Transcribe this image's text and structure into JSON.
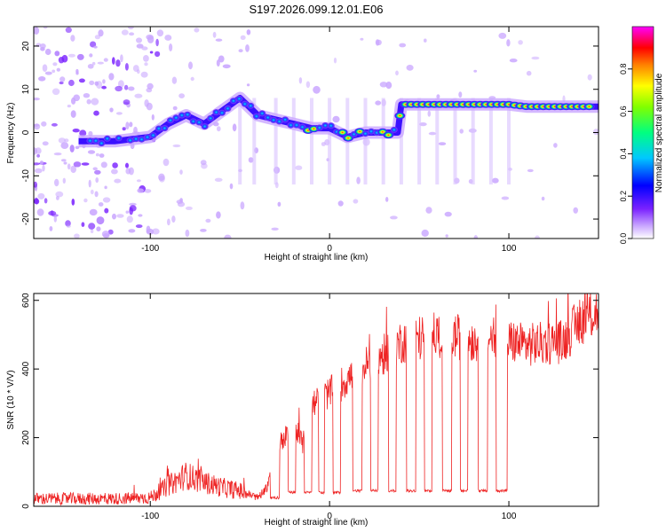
{
  "title": "S197.2026.099.12.01.E06",
  "colors": {
    "snr_line": "#ee2222",
    "background": "#ffffff",
    "axis": "#000000"
  },
  "chart_data": [
    {
      "type": "heatmap",
      "name": "spectrogram",
      "xlabel": "Height of straight line (km)",
      "ylabel": "Frequency (Hz)",
      "xlim": [
        -165,
        150
      ],
      "ylim": [
        -24.5,
        24.5
      ],
      "x_ticks": [
        -100,
        0,
        100
      ],
      "y_ticks": [
        -20,
        -10,
        0,
        10,
        20
      ],
      "colorbar": {
        "label": "Normalized spectral amplitude",
        "range": [
          0,
          1
        ],
        "ticks": [
          "0.0",
          "0.2",
          "0.4",
          "0.6",
          "0.8"
        ],
        "colormap": "rainbow (white-violet-blue-cyan-green-yellow-red-magenta)"
      },
      "ridge": {
        "description": "dominant frequency trace vs height",
        "x": [
          -140,
          -120,
          -100,
          -90,
          -80,
          -70,
          -60,
          -50,
          -40,
          -30,
          -20,
          -10,
          0,
          10,
          20,
          30,
          38,
          40,
          60,
          80,
          100,
          110,
          130,
          150
        ],
        "freq": [
          -2,
          -2,
          -1,
          2,
          4,
          2,
          5,
          8,
          4,
          3,
          2,
          1,
          1,
          -1,
          0,
          0,
          0,
          6.5,
          6.5,
          6.5,
          6.5,
          6,
          6,
          6
        ]
      }
    },
    {
      "type": "line",
      "name": "snr",
      "xlabel": "Height of straight line (km)",
      "ylabel": "SNR (10 * V/V)",
      "xlim": [
        -165,
        150
      ],
      "ylim": [
        0,
        620
      ],
      "x_ticks": [
        -100,
        0,
        100
      ],
      "y_ticks": [
        0,
        200,
        400,
        600
      ],
      "baseline": {
        "x": [
          -165,
          -120,
          -100,
          -90,
          -80,
          -70,
          -60,
          -50,
          -40,
          -35,
          -30,
          -25,
          -20,
          -15,
          -10,
          -5,
          0,
          10,
          20,
          30,
          40,
          50,
          60,
          70,
          80,
          90,
          100,
          110,
          120,
          130,
          140,
          150
        ],
        "y": [
          22,
          22,
          25,
          60,
          90,
          70,
          55,
          45,
          25,
          55,
          170,
          200,
          240,
          180,
          280,
          320,
          330,
          370,
          410,
          440,
          480,
          490,
          500,
          495,
          485,
          490,
          480,
          470,
          475,
          480,
          540,
          570
        ]
      },
      "dropouts": [
        {
          "start": -33,
          "end": -28,
          "y": 25
        },
        {
          "start": -23,
          "end": -19,
          "y": 40
        },
        {
          "start": -14,
          "end": -10,
          "y": 40
        },
        {
          "start": -6,
          "end": -3,
          "y": 40
        },
        {
          "start": 2,
          "end": 6,
          "y": 40
        },
        {
          "start": 13,
          "end": 18,
          "y": 45
        },
        {
          "start": 23,
          "end": 27,
          "y": 45
        },
        {
          "start": 33,
          "end": 37,
          "y": 45
        },
        {
          "start": 43,
          "end": 48,
          "y": 45
        },
        {
          "start": 53,
          "end": 57,
          "y": 45
        },
        {
          "start": 63,
          "end": 68,
          "y": 45
        },
        {
          "start": 73,
          "end": 77,
          "y": 45
        },
        {
          "start": 83,
          "end": 88,
          "y": 45
        },
        {
          "start": 93,
          "end": 99,
          "y": 45
        }
      ]
    }
  ]
}
